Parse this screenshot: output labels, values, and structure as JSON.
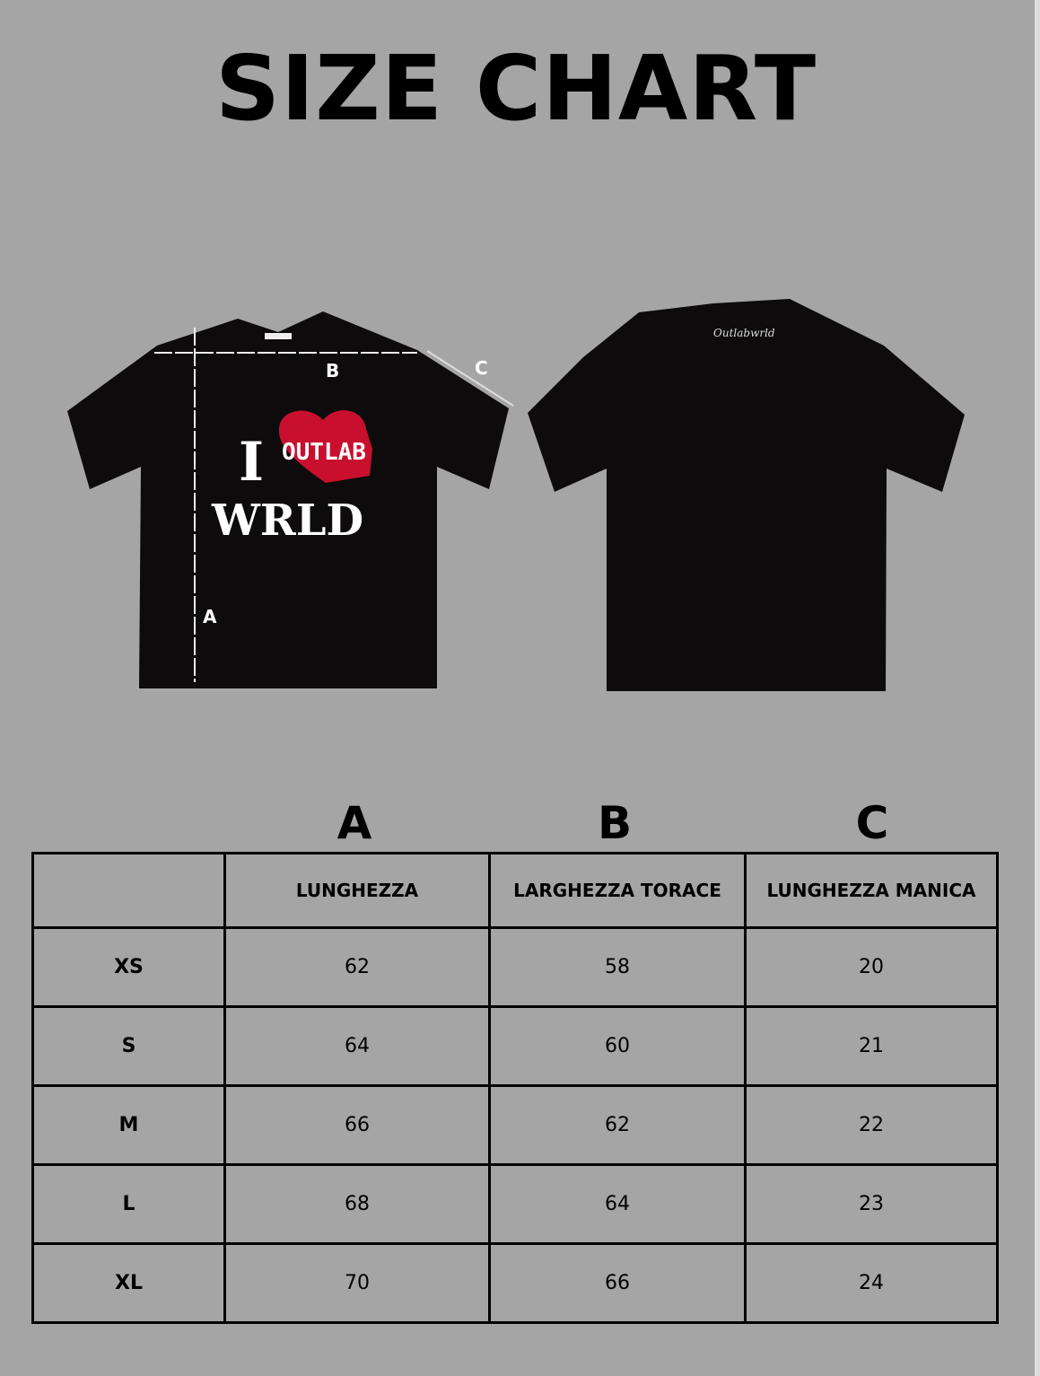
{
  "title": "SIZE CHART",
  "colors": {
    "background": "#a5a5a5",
    "shirt": "#0d0b0c",
    "heart": "#c8102e"
  },
  "front_shirt": {
    "print_line1": "I",
    "heart_text": "OUTLAB",
    "print_line2": "WRLD",
    "measure_labels": {
      "a": "A",
      "b": "B",
      "c": "C"
    }
  },
  "back_shirt": {
    "signature": "Outlabwrld"
  },
  "table": {
    "column_letters": [
      "A",
      "B",
      "C"
    ],
    "headers": [
      "",
      "LUNGHEZZA",
      "LARGHEZZA TORACE",
      "LUNGHEZZA MANICA"
    ],
    "rows": [
      {
        "size": "XS",
        "a": "62",
        "b": "58",
        "c": "20"
      },
      {
        "size": "S",
        "a": "64",
        "b": "60",
        "c": "21"
      },
      {
        "size": "M",
        "a": "66",
        "b": "62",
        "c": "22"
      },
      {
        "size": "L",
        "a": "68",
        "b": "64",
        "c": "23"
      },
      {
        "size": "XL",
        "a": "70",
        "b": "66",
        "c": "24"
      }
    ]
  }
}
